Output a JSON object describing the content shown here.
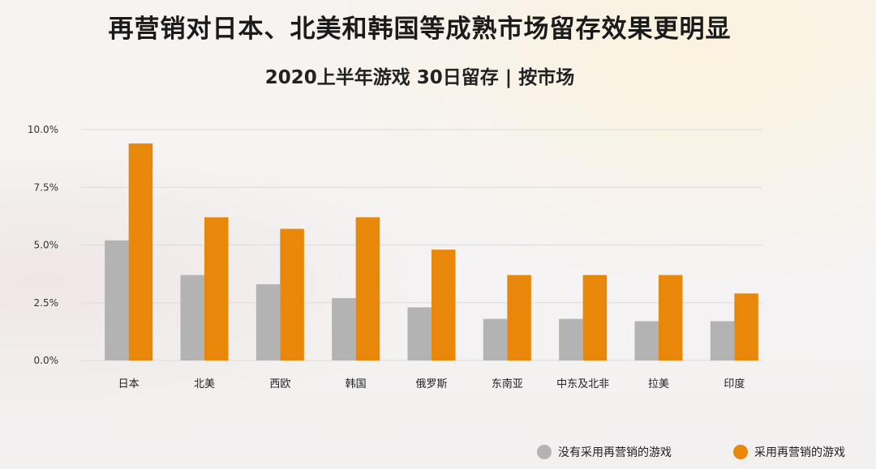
{
  "header": {
    "title": "再营销对日本、北美和韩国等成熟市场留存效果更明显",
    "subtitle": "2020上半年游戏 30日留存 | 按市场"
  },
  "chart_data": {
    "type": "bar",
    "title": "再营销对日本、北美和韩国等成熟市场留存效果更明显",
    "subtitle": "2020上半年游戏 30日留存 | 按市场",
    "categories": [
      "日本",
      "北美",
      "西欧",
      "韩国",
      "俄罗斯",
      "东南亚",
      "中东及北非",
      "拉美",
      "印度"
    ],
    "series": [
      {
        "name": "没有采用再营销的游戏",
        "color": "#b3b3b3",
        "values": [
          5.2,
          3.7,
          3.3,
          2.7,
          2.3,
          1.8,
          1.8,
          1.7,
          1.7
        ]
      },
      {
        "name": "采用再营销的游戏",
        "color": "#e8870a",
        "values": [
          9.4,
          6.2,
          5.7,
          6.2,
          4.8,
          3.7,
          3.7,
          3.7,
          2.9
        ]
      }
    ],
    "yticks": [
      "0.0%",
      "2.5%",
      "5.0%",
      "7.5%",
      "10.0%"
    ],
    "ytick_values": [
      0,
      2.5,
      5,
      7.5,
      10
    ],
    "ylim": [
      0,
      10
    ],
    "unit": "%",
    "grid": true,
    "legend_position": "bottom-right"
  }
}
